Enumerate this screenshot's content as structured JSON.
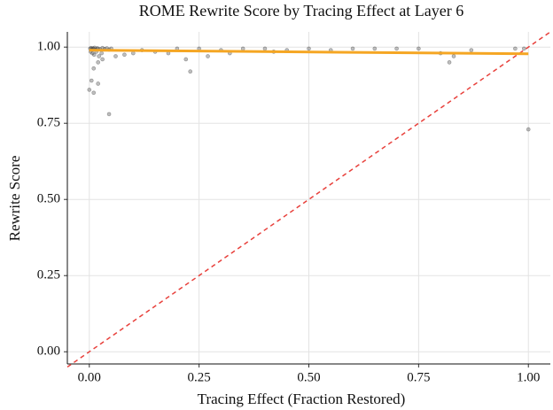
{
  "chart_data": {
    "type": "scatter",
    "title": "ROME Rewrite Score by Tracing Effect at Layer 6",
    "x_label": "Tracing Effect (Fraction Restored)",
    "y_label": "Rewrite Score",
    "xlim": [
      -0.05,
      1.05
    ],
    "ylim": [
      -0.04,
      1.05
    ],
    "xticks": [
      {
        "value": 0,
        "label": "0.00"
      },
      {
        "value": 0.25,
        "label": "0.25"
      },
      {
        "value": 0.5,
        "label": "0.50"
      },
      {
        "value": 0.75,
        "label": "0.75"
      },
      {
        "value": 1,
        "label": "1.00"
      }
    ],
    "yticks": [
      {
        "value": 0,
        "label": "0.00"
      },
      {
        "value": 0.25,
        "label": "0.25"
      },
      {
        "value": 0.5,
        "label": "0.50"
      },
      {
        "value": 0.75,
        "label": "0.75"
      },
      {
        "value": 1,
        "label": "1.00"
      }
    ],
    "grid": true,
    "points": {
      "color": "#444444",
      "x": [
        0.002,
        0.004,
        0.006,
        0.008,
        0.01,
        0.012,
        0.015,
        0.018,
        0.02,
        0.025,
        0.03,
        0.035,
        0.04,
        0.045,
        0.05,
        0.003,
        0.007,
        0.011,
        0.016,
        0.022,
        0.028,
        0.0,
        0.005,
        0.01,
        0.02,
        0.045,
        0.01,
        0.02,
        0.03,
        0.06,
        0.1,
        0.12,
        0.15,
        0.2,
        0.22,
        0.25,
        0.23,
        0.3,
        0.35,
        0.4,
        0.45,
        0.5,
        0.55,
        0.6,
        0.65,
        0.7,
        0.75,
        0.8,
        0.82,
        0.83,
        0.87,
        0.97,
        0.99,
        1.0,
        0.27,
        0.08,
        0.18,
        0.32,
        0.42
      ],
      "y": [
        0.995,
        0.997,
        0.993,
        0.996,
        0.994,
        0.998,
        0.992,
        0.996,
        0.995,
        0.993,
        0.997,
        0.994,
        0.996,
        0.992,
        0.995,
        0.985,
        0.98,
        0.975,
        0.985,
        0.97,
        0.98,
        0.86,
        0.89,
        0.85,
        0.88,
        0.78,
        0.93,
        0.95,
        0.96,
        0.97,
        0.98,
        0.99,
        0.985,
        0.995,
        0.96,
        0.995,
        0.92,
        0.99,
        0.995,
        0.995,
        0.99,
        0.995,
        0.99,
        0.995,
        0.995,
        0.995,
        0.995,
        0.98,
        0.95,
        0.97,
        0.99,
        0.995,
        0.995,
        0.73,
        0.97,
        0.975,
        0.98,
        0.98,
        0.985
      ]
    },
    "trend": {
      "color": "#f5a623",
      "x": [
        0,
        1
      ],
      "y": [
        0.99,
        0.978
      ]
    },
    "reference": {
      "color": "#e8413c",
      "x": [
        -0.05,
        1.05
      ],
      "y": [
        -0.05,
        1.05
      ]
    }
  }
}
